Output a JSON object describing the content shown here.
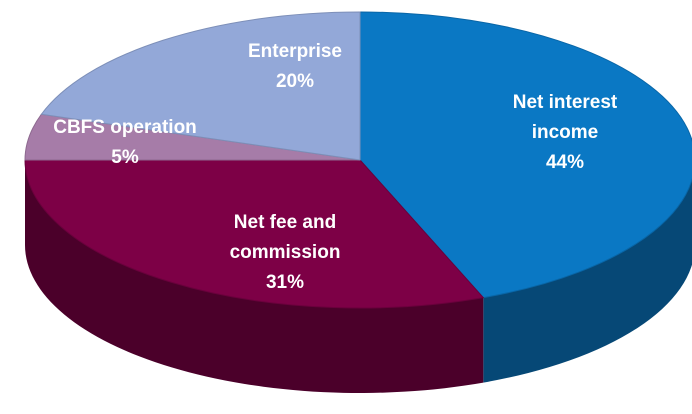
{
  "chart_data": {
    "type": "pie",
    "categories": [
      "Net interest income",
      "Net fee and commission",
      "CBFS operation",
      "Enterprise"
    ],
    "values": [
      44,
      31,
      5,
      20
    ],
    "value_labels": [
      "44%",
      "31%",
      "5%",
      "20%"
    ],
    "colors": [
      "#0a78c4",
      "#7d0046",
      "#a67ca8",
      "#93a8d8"
    ]
  }
}
